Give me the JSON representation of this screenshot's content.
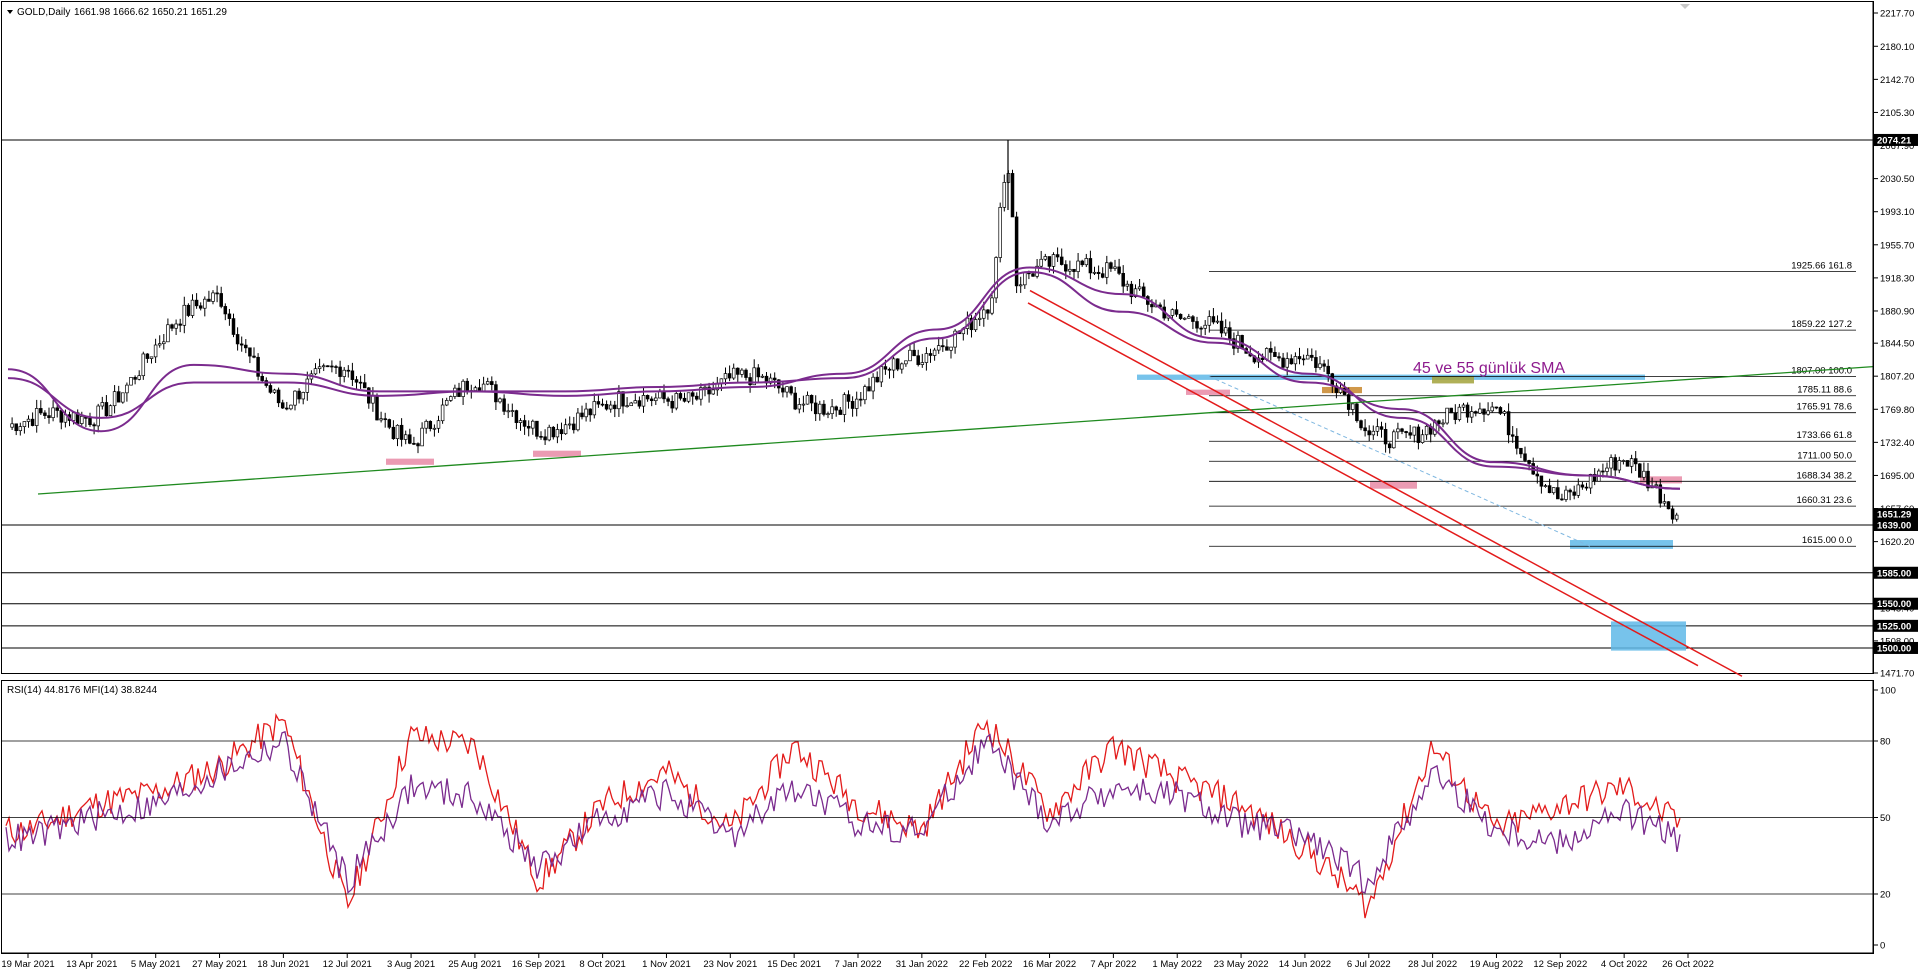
{
  "window": {
    "symbol_label": "GOLD,Daily",
    "ohlc": "1661.98 1666.62 1650.21 1651.29",
    "indicator_label": "RSI(14) 44.8176  MFI(14) 38.8244",
    "menu_icon": "triangle-down-icon"
  },
  "colors": {
    "candle": "#000000",
    "sma": "#7b2b8e",
    "trend_support": "#1f8a1f",
    "channel": "#e31b1b",
    "fib_line": "#000000",
    "zone_blue": "#5fb8e8",
    "zone_pink": "#e88aa6",
    "zone_orange": "#c8862a",
    "zone_olive": "#a2a23a",
    "rsi": "#e31b1b",
    "mfi": "#7b2b8e",
    "price_tag_bg": "#000000"
  },
  "annotation": "45 ve 55 günlük SMA",
  "price_axis": {
    "min": 1471.7,
    "max": 2217.7,
    "ticks": [
      "2217.70",
      "2180.10",
      "2142.70",
      "2105.30",
      "2067.90",
      "2030.50",
      "1993.10",
      "1955.70",
      "1918.30",
      "1880.90",
      "1844.50",
      "1807.20",
      "1769.80",
      "1732.40",
      "1695.00",
      "1657.60",
      "1620.20",
      "1583.00",
      "1545.40",
      "1508.00",
      "1471.70"
    ]
  },
  "price_tags": [
    "2074.21",
    "1651.29",
    "1639.00",
    "1585.00",
    "1550.00",
    "1525.00",
    "1500.00"
  ],
  "fib_levels": [
    {
      "price": 1925.66,
      "label": "1925.66 161.8"
    },
    {
      "price": 1859.22,
      "label": "1859.22 127.2"
    },
    {
      "price": 1807.0,
      "label": "1807.00 100.0"
    },
    {
      "price": 1785.11,
      "label": "1785.11 88.6"
    },
    {
      "price": 1765.91,
      "label": "1765.91 78.6"
    },
    {
      "price": 1733.66,
      "label": "1733.66 61.8"
    },
    {
      "price": 1711.0,
      "label": "1711.00 50.0"
    },
    {
      "price": 1688.34,
      "label": "1688.34 38.2"
    },
    {
      "price": 1660.31,
      "label": "1660.31 23.6"
    },
    {
      "price": 1615.0,
      "label": "1615.00 0.0"
    }
  ],
  "indicator_axis": {
    "min": 0,
    "max": 100,
    "ticks": [
      "100",
      "80",
      "50",
      "20",
      "0"
    ]
  },
  "date_axis": [
    "19 Mar 2021",
    "13 Apr 2021",
    "5 May 2021",
    "27 May 2021",
    "18 Jun 2021",
    "12 Jul 2021",
    "3 Aug 2021",
    "25 Aug 2021",
    "16 Sep 2021",
    "8 Oct 2021",
    "1 Nov 2021",
    "23 Nov 2021",
    "15 Dec 2021",
    "7 Jan 2022",
    "31 Jan 2022",
    "22 Feb 2022",
    "16 Mar 2022",
    "7 Apr 2022",
    "1 May 2022",
    "23 May 2022",
    "14 Jun 2022",
    "6 Jul 2022",
    "28 Jul 2022",
    "19 Aug 2022",
    "12 Sep 2022",
    "4 Oct 2022",
    "26 Oct 2022"
  ],
  "chart_data": [
    {
      "type": "candlestick",
      "title": "GOLD,Daily",
      "ylim": [
        1471.7,
        2217.7
      ],
      "close_path_keypoints": {
        "dates": [
          "19 Mar 2021",
          "13 Apr 2021",
          "27 May 2021",
          "18 Jun 2021",
          "12 Jul 2021",
          "3 Aug 2021",
          "25 Aug 2021",
          "16 Sep 2021",
          "8 Oct 2021",
          "1 Nov 2021",
          "23 Nov 2021",
          "15 Dec 2021",
          "7 Jan 2022",
          "31 Jan 2022",
          "22 Feb 2022",
          "16 Mar 2022",
          "7 Apr 2022",
          "1 May 2022",
          "23 May 2022",
          "14 Jun 2022",
          "6 Jul 2022",
          "28 Jul 2022",
          "19 Aug 2022",
          "12 Sep 2022",
          "4 Oct 2022",
          "26 Oct 2022"
        ],
        "close": [
          1745,
          1770,
          1900,
          1775,
          1810,
          1740,
          1790,
          1760,
          1760,
          1790,
          1800,
          1780,
          1790,
          1820,
          1900,
          1920,
          1940,
          1860,
          1850,
          1830,
          1740,
          1760,
          1760,
          1680,
          1700,
          1651
        ]
      },
      "sma_45": [
        1815,
        1745,
        1820,
        1810,
        1790,
        1790,
        1785,
        1790,
        1795,
        1810,
        1860,
        1930,
        1900,
        1850,
        1810,
        1760,
        1705,
        1695,
        1680
      ],
      "sma_55": [
        1805,
        1760,
        1800,
        1800,
        1785,
        1790,
        1790,
        1795,
        1800,
        1805,
        1850,
        1925,
        1880,
        1845,
        1800,
        1770,
        1710,
        1695,
        1680
      ],
      "annotations": [
        "45 ve 55 günlük SMA"
      ]
    },
    {
      "type": "line",
      "title": "RSI(14) 44.8176  MFI(14) 38.8244",
      "ylim": [
        0,
        100
      ],
      "levels": [
        80,
        50,
        20
      ],
      "series": [
        {
          "name": "RSI(14)",
          "values": [
            45,
            55,
            60,
            70,
            88,
            15,
            82,
            78,
            25,
            55,
            68,
            45,
            78,
            55,
            45,
            88,
            52,
            78,
            65,
            55,
            38,
            15,
            78,
            45,
            55,
            62,
            45
          ]
        },
        {
          "name": "MFI(14)",
          "values": [
            42,
            50,
            55,
            68,
            80,
            25,
            62,
            58,
            30,
            50,
            60,
            42,
            62,
            48,
            45,
            80,
            48,
            62,
            58,
            48,
            42,
            25,
            68,
            45,
            40,
            52,
            39
          ]
        }
      ]
    }
  ]
}
